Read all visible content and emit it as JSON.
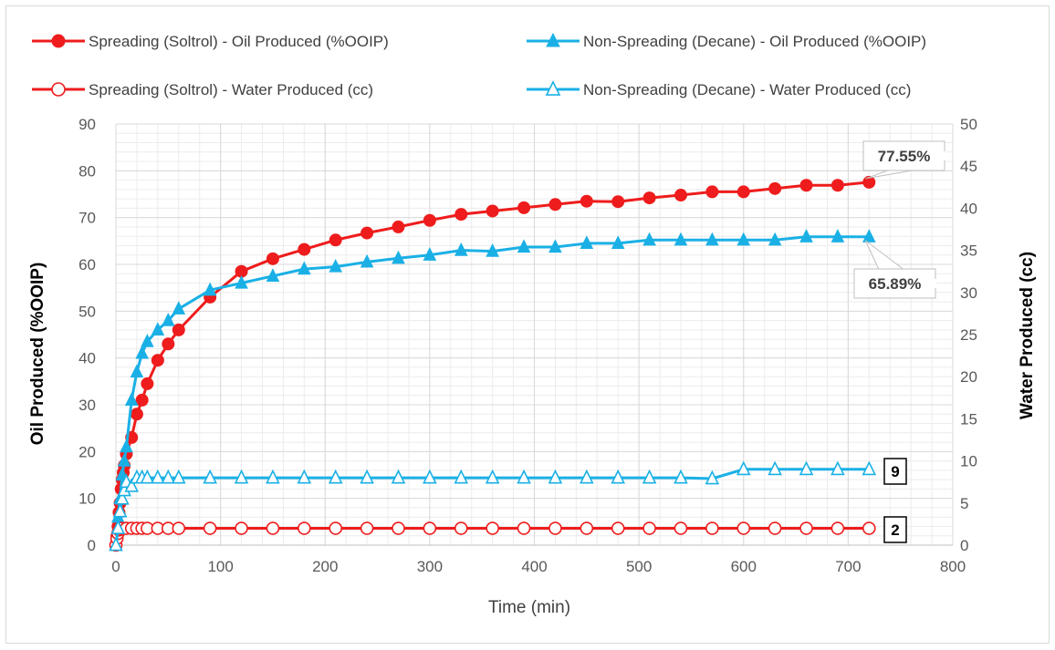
{
  "colors": {
    "spreading": "#ee1c1c",
    "nonspreading": "#1ab0e6",
    "grid_major": "#d9d9d9",
    "grid_minor": "#ececec"
  },
  "chart_data": {
    "type": "line",
    "xlabel": "Time (min)",
    "ylabel": "Oil Produced (%OOIP)",
    "y2label": "Water Produced (cc)",
    "xlim": [
      0,
      800
    ],
    "ylim": [
      0,
      90
    ],
    "y2lim": [
      0,
      50
    ],
    "x_ticks": [
      0,
      100,
      200,
      300,
      400,
      500,
      600,
      700,
      800
    ],
    "y_ticks": [
      0,
      10,
      20,
      30,
      40,
      50,
      60,
      70,
      80,
      90
    ],
    "y2_ticks": [
      0,
      5,
      10,
      15,
      20,
      25,
      30,
      35,
      40,
      45,
      50
    ],
    "grid": true,
    "minor_grid": true,
    "legend_position": "top",
    "series": [
      {
        "name": "Spreading (Soltrol) - Oil Produced (%OOIP)",
        "axis": "left",
        "color": "#ee1c1c",
        "marker": "circle-filled",
        "x": [
          0,
          1,
          2,
          3,
          4,
          5,
          6,
          7,
          8,
          10,
          15,
          20,
          25,
          30,
          40,
          50,
          60,
          90,
          120,
          150,
          180,
          210,
          240,
          270,
          300,
          330,
          360,
          390,
          420,
          450,
          480,
          510,
          540,
          570,
          600,
          630,
          660,
          690,
          720
        ],
        "y": [
          0,
          2,
          4,
          7,
          9,
          12,
          14,
          15.5,
          17,
          19.5,
          23,
          28,
          31,
          34.5,
          39.5,
          43,
          46,
          53,
          58.5,
          61.2,
          63.2,
          65.2,
          66.7,
          68,
          69.4,
          70.7,
          71.4,
          72.1,
          72.8,
          73.5,
          73.4,
          74.2,
          74.8,
          75.5,
          75.5,
          76.2,
          76.9,
          76.9,
          77.55
        ]
      },
      {
        "name": "Non-Spreading (Decane) - Oil Produced (%OOIP)",
        "axis": "left",
        "color": "#1ab0e6",
        "marker": "triangle-filled",
        "x": [
          0,
          2,
          4,
          6,
          8,
          10,
          15,
          20,
          25,
          30,
          40,
          50,
          60,
          90,
          120,
          150,
          180,
          210,
          240,
          270,
          300,
          330,
          360,
          390,
          420,
          450,
          480,
          510,
          540,
          570,
          600,
          630,
          660,
          690,
          720
        ],
        "y": [
          0,
          6,
          10,
          15,
          18,
          21,
          31,
          37,
          41,
          43.5,
          46,
          48,
          50.5,
          54.5,
          56,
          57.5,
          59,
          59.5,
          60.5,
          61.3,
          62,
          63,
          62.8,
          63.7,
          63.7,
          64.5,
          64.5,
          65.2,
          65.2,
          65.2,
          65.2,
          65.2,
          65.9,
          65.9,
          65.89
        ]
      },
      {
        "name": "Spreading (Soltrol) - Water Produced (cc)",
        "axis": "right",
        "color": "#ee1c1c",
        "marker": "circle-open",
        "x": [
          0,
          1,
          2,
          3,
          4,
          5,
          10,
          15,
          20,
          25,
          30,
          40,
          50,
          60,
          90,
          120,
          150,
          180,
          210,
          240,
          270,
          300,
          330,
          360,
          390,
          420,
          450,
          480,
          510,
          540,
          570,
          600,
          630,
          660,
          690,
          720
        ],
        "y": [
          0,
          0.8,
          1.4,
          1.8,
          2,
          2,
          2,
          2,
          2,
          2,
          2,
          2,
          2,
          2,
          2,
          2,
          2,
          2,
          2,
          2,
          2,
          2,
          2,
          2,
          2,
          2,
          2,
          2,
          2,
          2,
          2,
          2,
          2,
          2,
          2,
          2
        ]
      },
      {
        "name": "Non-Spreading (Decane) - Water Produced (cc)",
        "axis": "right",
        "color": "#1ab0e6",
        "marker": "triangle-open",
        "x": [
          0,
          2,
          4,
          6,
          8,
          10,
          15,
          20,
          25,
          30,
          40,
          50,
          60,
          90,
          120,
          150,
          180,
          210,
          240,
          270,
          300,
          330,
          360,
          390,
          420,
          450,
          480,
          510,
          540,
          570,
          600,
          630,
          660,
          690,
          720
        ],
        "y": [
          0,
          2,
          4,
          5.5,
          6.5,
          7.5,
          7,
          8,
          8,
          8,
          8,
          8,
          8,
          8,
          8,
          8,
          8,
          8,
          8,
          8,
          8,
          8,
          8,
          8,
          8,
          8,
          8,
          8,
          8,
          7.9,
          9,
          9,
          9,
          9,
          9
        ]
      }
    ],
    "annotations": {
      "spreading_oil_final": "77.55%",
      "nonspreading_oil_final": "65.89%",
      "nonspreading_water_final": "9",
      "spreading_water_final": "2"
    }
  }
}
